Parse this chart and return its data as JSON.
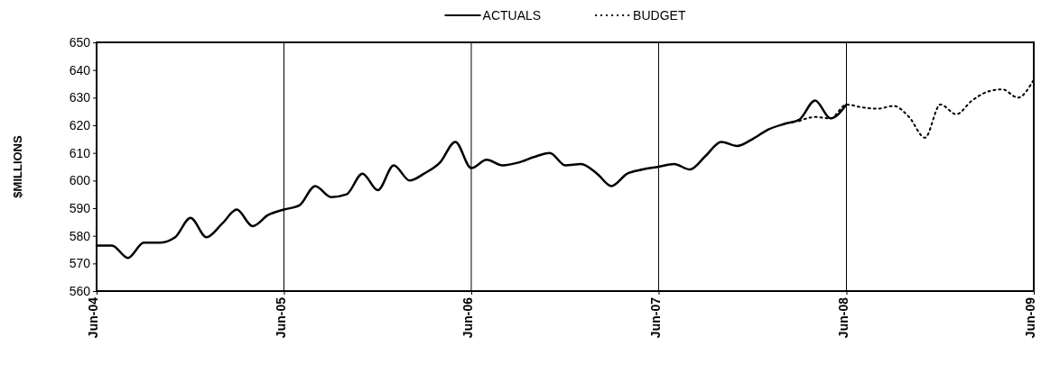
{
  "chart_data": {
    "type": "line",
    "ylabel": "$MILLIONS",
    "legend": "top",
    "grid": "x",
    "xlim": [
      "2004-06",
      "2009-06"
    ],
    "xticks": [
      {
        "value": "2004-06",
        "label": "Jun-04"
      },
      {
        "value": "2005-06",
        "label": "Jun-05"
      },
      {
        "value": "2006-06",
        "label": "Jun-06"
      },
      {
        "value": "2007-06",
        "label": "Jun-07"
      },
      {
        "value": "2008-06",
        "label": "Jun-08"
      },
      {
        "value": "2009-06",
        "label": "Jun-09"
      }
    ],
    "ylim": [
      560,
      650
    ],
    "yticks": [
      560,
      570,
      580,
      590,
      600,
      610,
      620,
      630,
      640,
      650
    ],
    "series": [
      {
        "name": "ACTUALS",
        "color": "#000000",
        "line_style": "solid",
        "x": [
          "2004-06",
          "2004-07",
          "2004-08",
          "2004-09",
          "2004-10",
          "2004-11",
          "2004-12",
          "2005-01",
          "2005-02",
          "2005-03",
          "2005-04",
          "2005-05",
          "2005-06",
          "2005-07",
          "2005-08",
          "2005-09",
          "2005-10",
          "2005-11",
          "2005-12",
          "2006-01",
          "2006-02",
          "2006-03",
          "2006-04",
          "2006-05",
          "2006-06",
          "2006-07",
          "2006-08",
          "2006-09",
          "2006-10",
          "2006-11",
          "2006-12",
          "2007-01",
          "2007-02",
          "2007-03",
          "2007-04",
          "2007-05",
          "2007-06",
          "2007-07",
          "2007-08",
          "2007-09",
          "2007-10",
          "2007-11",
          "2007-12",
          "2008-01",
          "2008-02",
          "2008-03",
          "2008-04",
          "2008-05",
          "2008-06"
        ],
        "values": [
          576.5,
          576.5,
          572,
          577.5,
          577.5,
          579.5,
          586.5,
          579.5,
          584.5,
          589.5,
          583.5,
          587.5,
          589.5,
          591,
          598,
          594,
          595,
          602.5,
          596.5,
          605.5,
          600,
          602.5,
          606.5,
          614,
          604.5,
          607.5,
          605.5,
          606.5,
          608.5,
          610,
          605.5,
          606,
          602.5,
          598,
          602.5,
          604,
          605,
          606,
          604,
          609,
          614,
          612.5,
          615,
          618.5,
          620.5,
          622,
          629,
          622.5,
          627.5
        ]
      },
      {
        "name": "BUDGET",
        "color": "#000000",
        "line_style": "dotted",
        "x": [
          "2008-03",
          "2008-04",
          "2008-05",
          "2008-06",
          "2008-07",
          "2008-08",
          "2008-09",
          "2008-10",
          "2008-11",
          "2008-12",
          "2009-01",
          "2009-02",
          "2009-03",
          "2009-04",
          "2009-05",
          "2009-06"
        ],
        "values": [
          621.5,
          623,
          622.5,
          627.5,
          626.5,
          626,
          627,
          623,
          615.5,
          627.5,
          624,
          629,
          632,
          633,
          630,
          636.5
        ]
      }
    ]
  }
}
